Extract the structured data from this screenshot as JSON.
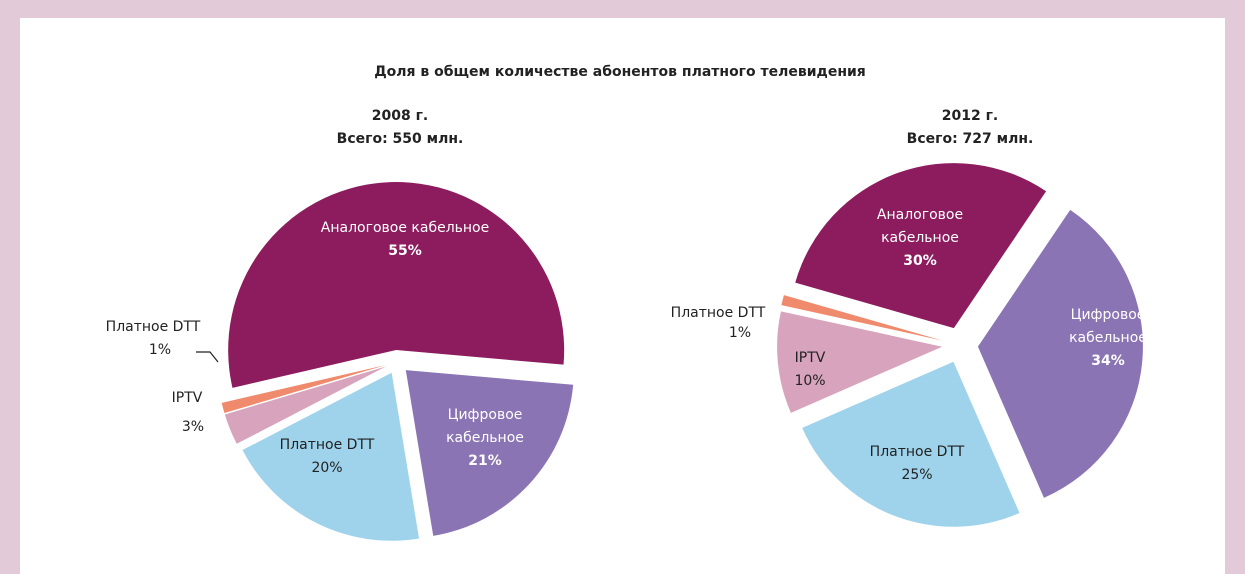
{
  "title": "Доля в общем количестве абонентов платного телевидения",
  "chart_data": [
    {
      "type": "pie",
      "title": "2008 г.",
      "subtitle": "Всего: 550 млн.",
      "categories": [
        "Аналоговое кабельное",
        "Цифровое кабельное",
        "Платное DTT",
        "IPTV",
        "Платное DTT"
      ],
      "values": [
        55,
        21,
        20,
        3,
        1
      ],
      "value_labels": [
        "55%",
        "21%",
        "20%",
        "3%",
        "1%"
      ],
      "colors": [
        "#8c1c5e",
        "#8b74b3",
        "#9fd3ec",
        "#d8a3bc",
        "#ef8a6c"
      ]
    },
    {
      "type": "pie",
      "title": "2012 г.",
      "subtitle": "Всего: 727 млн.",
      "categories": [
        "Аналоговое кабельное",
        "Цифровое кабельное",
        "Платное DTT",
        "IPTV",
        "Платное DTT"
      ],
      "values": [
        30,
        34,
        25,
        10,
        1
      ],
      "value_labels": [
        "30%",
        "34%",
        "25%",
        "10%",
        "1%"
      ],
      "colors": [
        "#8c1c5e",
        "#8b74b3",
        "#9fd3ec",
        "#d8a3bc",
        "#ef8a6c"
      ]
    }
  ]
}
